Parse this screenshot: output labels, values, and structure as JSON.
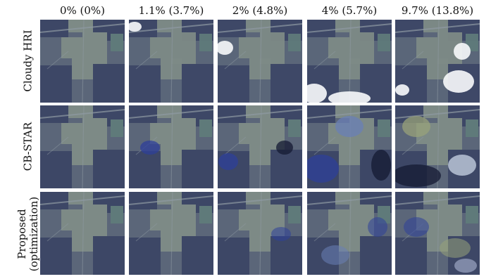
{
  "figure": {
    "columns": [
      {
        "label": "0% (0%)",
        "clouds": 0
      },
      {
        "label": "1.1% (3.7%)",
        "clouds": 1
      },
      {
        "label": "2% (4.8%)",
        "clouds": 2
      },
      {
        "label": "4% (5.7%)",
        "clouds": 3
      },
      {
        "label": "9.7% (13.8%)",
        "clouds": 4
      }
    ],
    "rows": [
      {
        "label": "Cloudy HRI",
        "method": "cloudy"
      },
      {
        "label": "CB-STAR",
        "method": "cbstar"
      },
      {
        "label": "Proposed\n(optimization)",
        "method": "proposed"
      }
    ]
  },
  "colors": {
    "field_dark": "#3d4766",
    "field_mid": "#5b6679",
    "field_light": "#7d8a86",
    "road": "#8f9aa3",
    "cloud": "#f4f6f8",
    "artifact_blue": "#2e3f9a",
    "artifact_dark": "#141a33",
    "artifact_yellow": "#98a27a"
  }
}
